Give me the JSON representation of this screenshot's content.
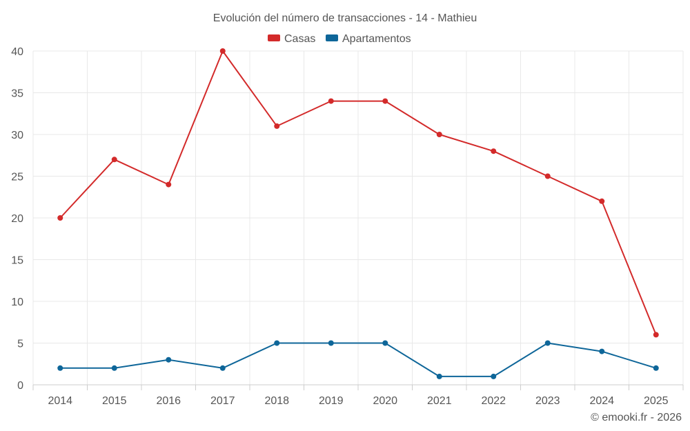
{
  "chart_data": {
    "type": "line",
    "title": "Evolución del número de transacciones - 14 - Mathieu",
    "categories": [
      "2014",
      "2015",
      "2016",
      "2017",
      "2018",
      "2019",
      "2020",
      "2021",
      "2022",
      "2023",
      "2024",
      "2025"
    ],
    "series": [
      {
        "name": "Casas",
        "color": "#d32a2a",
        "values": [
          20,
          27,
          24,
          40,
          31,
          34,
          34,
          30,
          28,
          25,
          22,
          6
        ]
      },
      {
        "name": "Apartamentos",
        "color": "#0e6699",
        "values": [
          2,
          2,
          3,
          2,
          5,
          5,
          5,
          1,
          1,
          5,
          4,
          2
        ]
      }
    ],
    "ylim": [
      0,
      40
    ],
    "yticks": [
      0,
      5,
      10,
      15,
      20,
      25,
      30,
      35,
      40
    ],
    "grid": true,
    "legend_position": "top-center",
    "xlabel": "",
    "ylabel": ""
  },
  "credit": "© emooki.fr - 2026"
}
